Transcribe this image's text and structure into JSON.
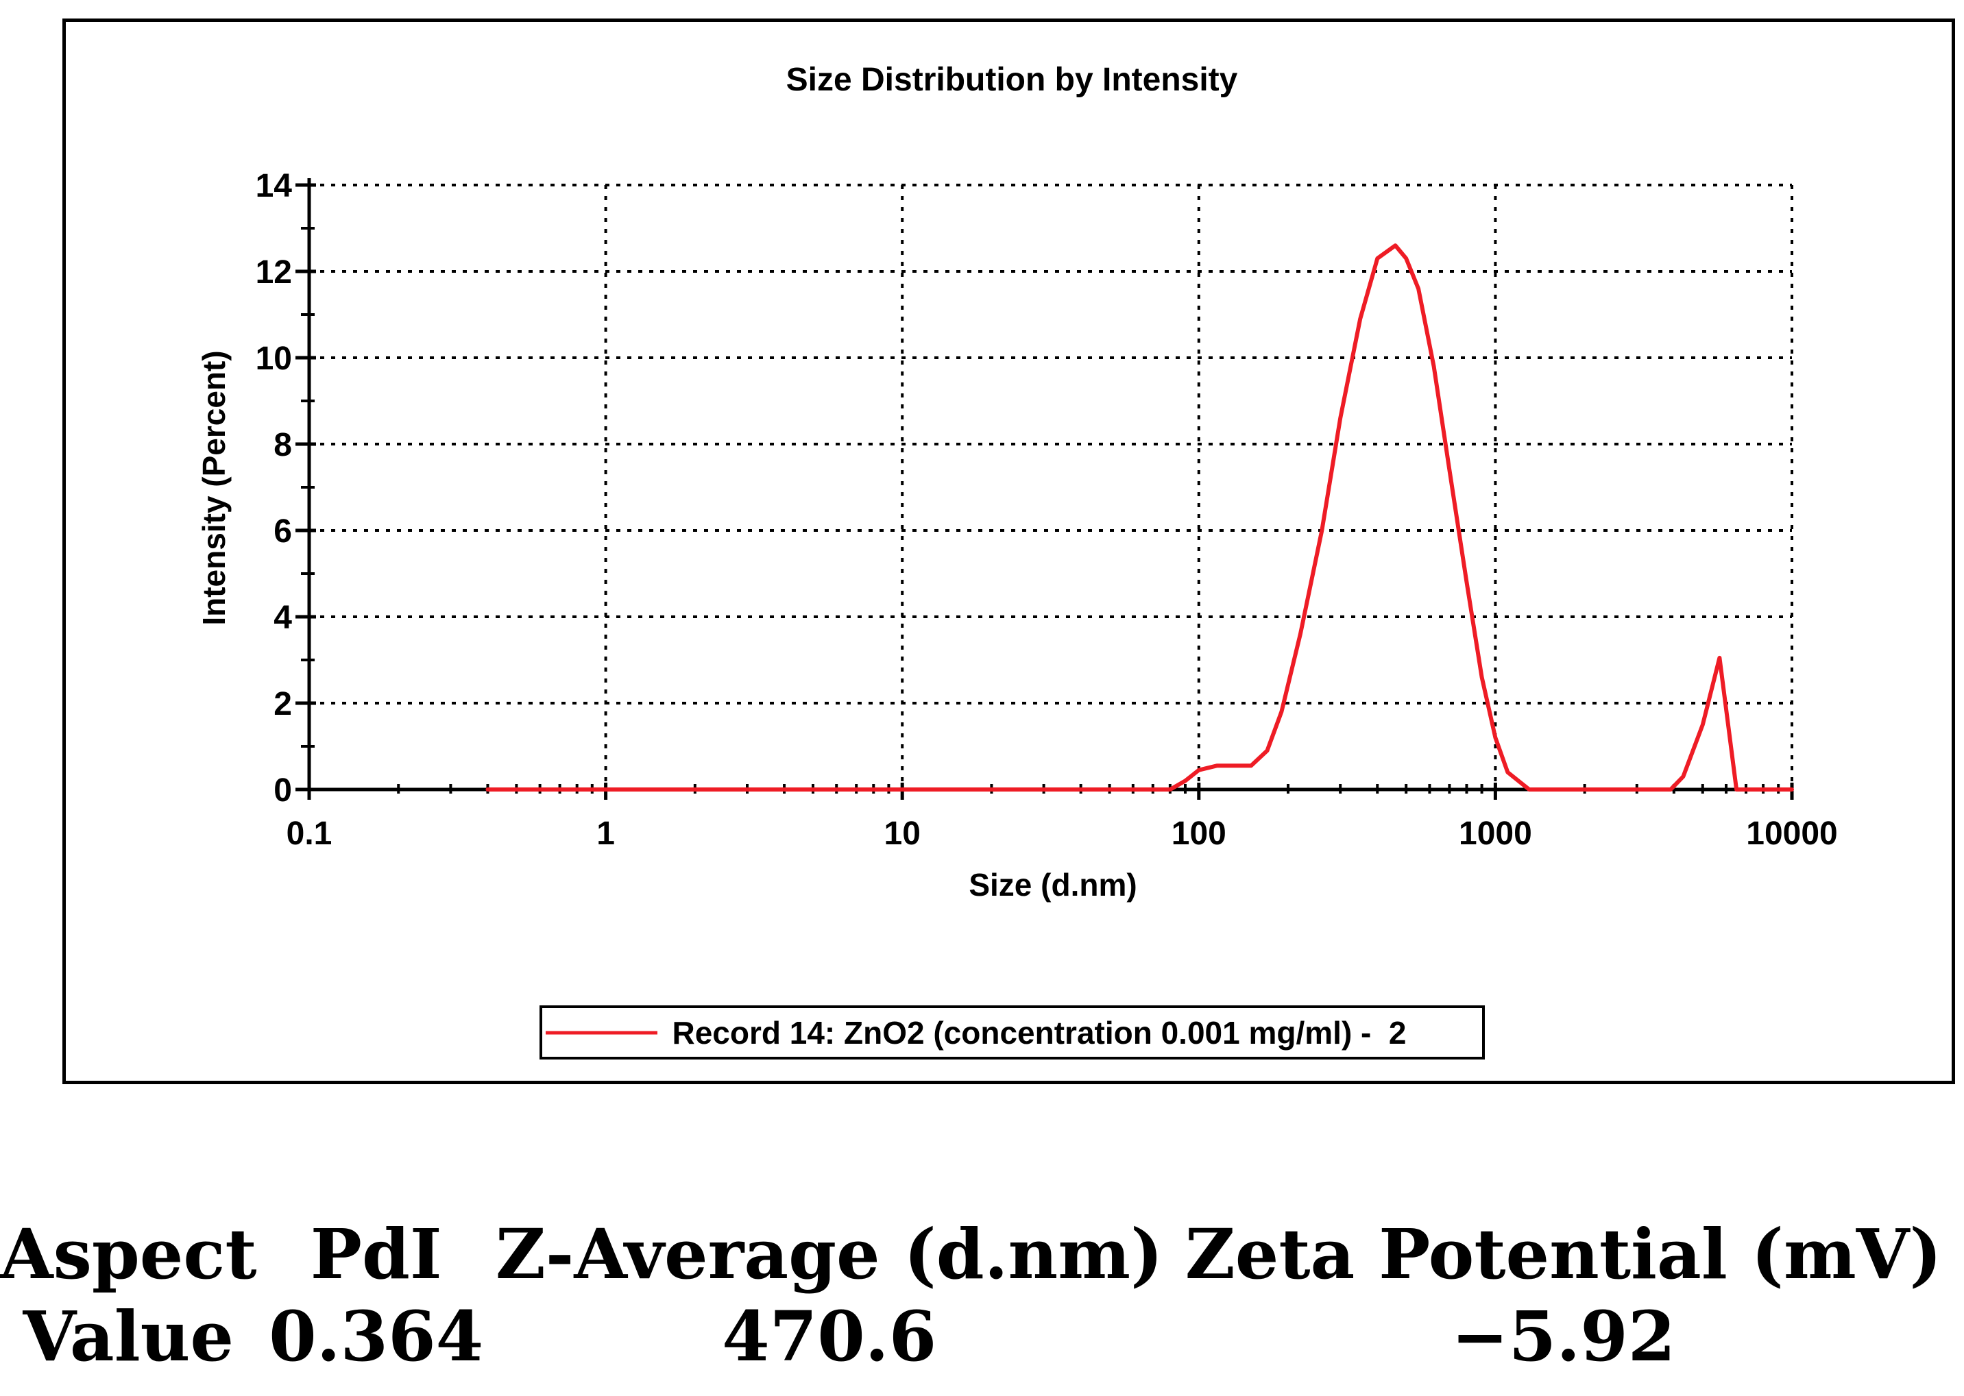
{
  "chart_data": {
    "type": "line",
    "title": "Size Distribution by Intensity",
    "xlabel": "Size (d.nm)",
    "ylabel": "Intensity (Percent)",
    "xscale": "log",
    "xlim": [
      0.1,
      10000
    ],
    "ylim": [
      0,
      14
    ],
    "xticks": [
      0.1,
      1,
      10,
      100,
      1000,
      10000
    ],
    "xtick_labels": [
      "0.1",
      "1",
      "10",
      "100",
      "1000",
      "10000"
    ],
    "yticks": [
      0,
      2,
      4,
      6,
      8,
      10,
      12,
      14
    ],
    "ytick_labels": [
      "0",
      "2",
      "4",
      "6",
      "8",
      "10",
      "12",
      "14"
    ],
    "grid": true,
    "legend_position": "bottom-center",
    "series": [
      {
        "name": "Record 14: ZnO2 (concentration 0.001 mg/ml) -  2",
        "color": "#ee1c25",
        "x": [
          0.4,
          1,
          10,
          50,
          80,
          90,
          100,
          115,
          130,
          150,
          170,
          190,
          220,
          260,
          300,
          350,
          400,
          460,
          500,
          550,
          620,
          700,
          800,
          900,
          1000,
          1100,
          1300,
          2000,
          3000,
          3900,
          4300,
          5000,
          5700,
          6500,
          7000,
          10000
        ],
        "y": [
          0,
          0,
          0,
          0,
          0,
          0.2,
          0.45,
          0.55,
          0.55,
          0.55,
          0.9,
          1.8,
          3.6,
          6.0,
          8.6,
          10.9,
          12.3,
          12.6,
          12.3,
          11.6,
          9.8,
          7.4,
          4.8,
          2.6,
          1.2,
          0.4,
          0,
          0,
          0,
          0,
          0.3,
          1.5,
          3.05,
          0,
          0,
          0
        ]
      }
    ]
  },
  "table": {
    "headers": [
      "Aspect",
      "PdI",
      "Z-Average (d.nm)",
      "Zeta Potential (mV)"
    ],
    "rows": [
      [
        "Value",
        "0.364",
        "470.6",
        "−5.92"
      ]
    ]
  }
}
